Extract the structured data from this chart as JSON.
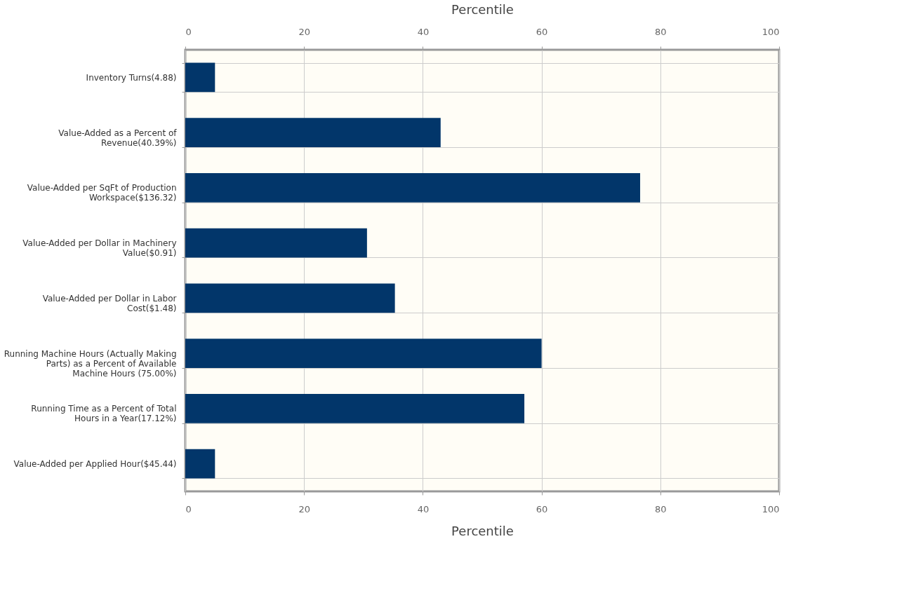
{
  "chart_data": {
    "type": "bar",
    "orientation": "horizontal",
    "xlabel": "Percentile",
    "x2label": "Percentile",
    "categories": [
      "Inventory Turns(4.88)",
      "Value-Added as a Percent of Revenue(40.39%)",
      "Value-Added per SqFt of Production Workspace($136.32)",
      "Value-Added per Dollar in Machinery Value($0.91)",
      "Value-Added per Dollar in Labor Cost($1.48)",
      "Running Machine Hours (Actually Making Parts) as a Percent of Available Machine Hours (75.00%)",
      "Running Time as a Percent of Total Hours in a Year(17.12%)",
      "Value-Added per Applied Hour($45.44)"
    ],
    "values": [
      5,
      43,
      76.6,
      30.6,
      35.3,
      60,
      57.1,
      5
    ],
    "color": "#02366a",
    "xlim": [
      0,
      100
    ],
    "xticks": [
      0,
      20,
      40,
      60,
      80,
      100
    ],
    "x2lim": [
      0,
      100
    ],
    "x2ticks": [
      0,
      20,
      40,
      60,
      80,
      100
    ],
    "grid": true
  }
}
